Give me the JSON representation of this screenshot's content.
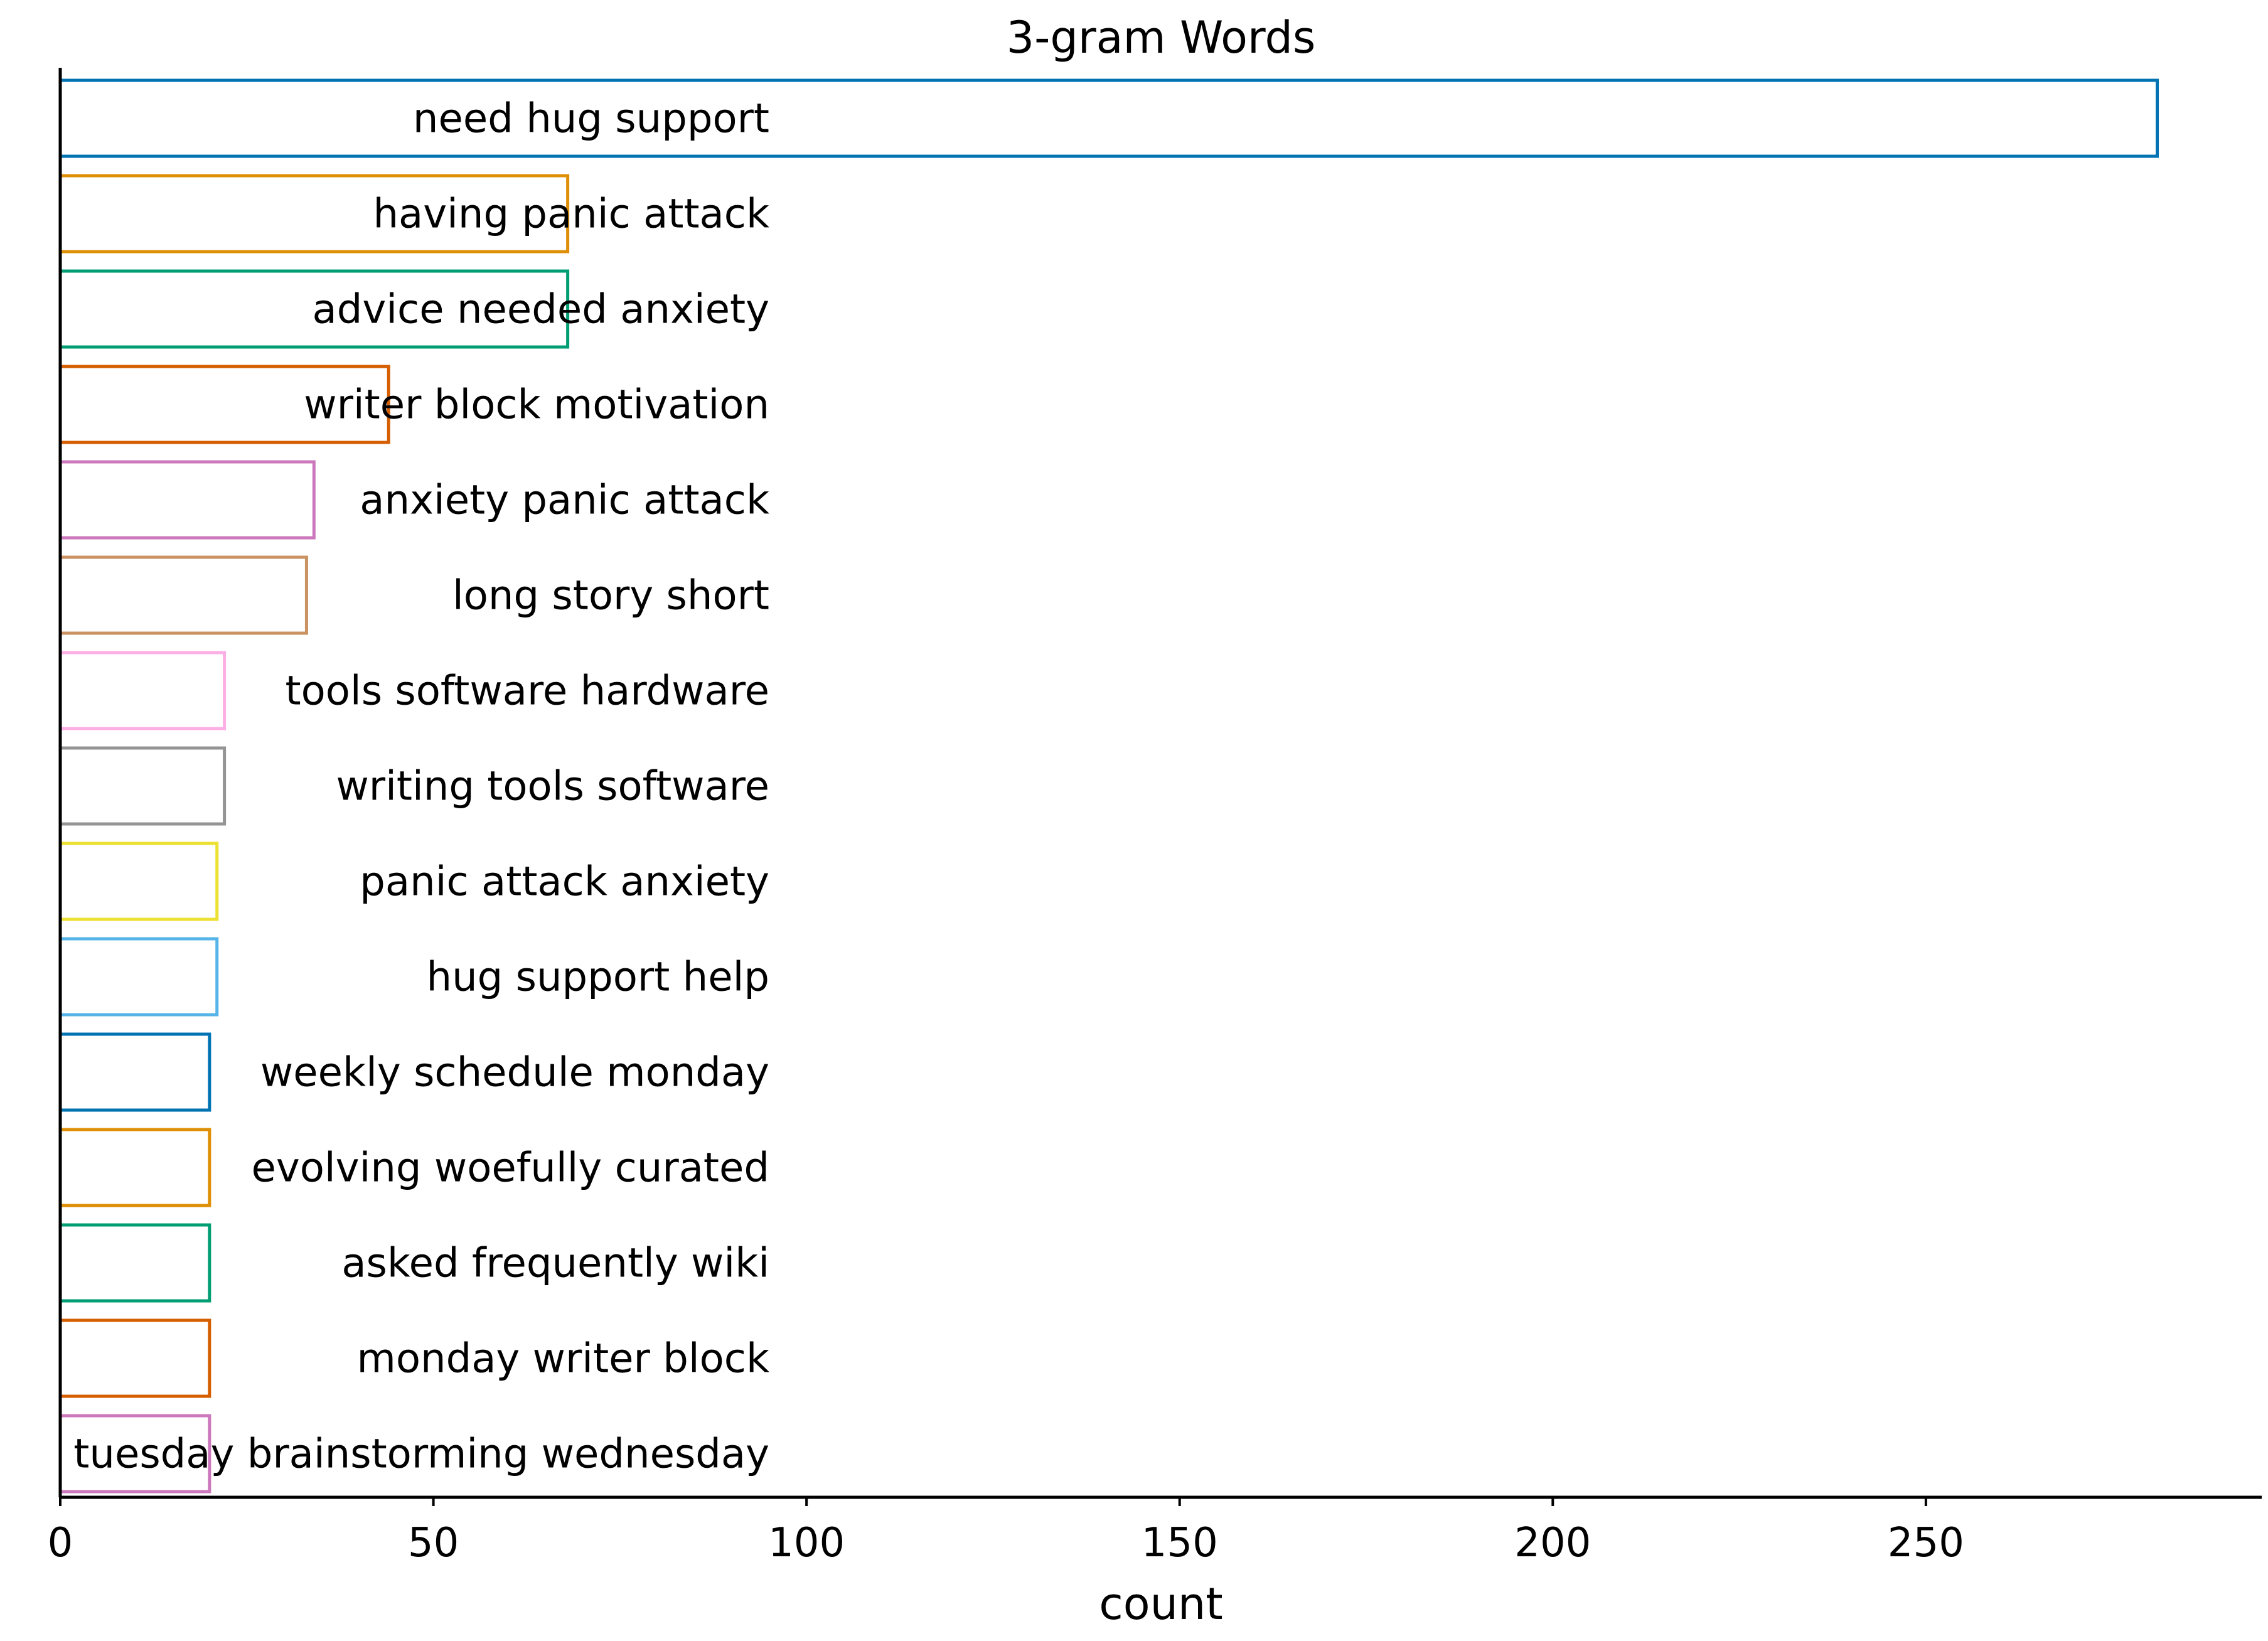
{
  "chart_data": {
    "type": "bar",
    "orientation": "horizontal",
    "title": "3-gram Words",
    "xlabel": "count",
    "ylabel": "",
    "xlim": [
      0,
      295
    ],
    "xticks": [
      0,
      50,
      100,
      150,
      200,
      250
    ],
    "xtick_labels": [
      "0",
      "50",
      "100",
      "150",
      "200",
      "250"
    ],
    "grid": false,
    "legend": false,
    "bar_style": "outline",
    "categories": [
      "need hug support",
      "having panic attack",
      "advice needed anxiety",
      "writer block motivation",
      "anxiety panic attack",
      "long story short",
      "tools software hardware",
      "writing tools software",
      "panic attack anxiety",
      "hug support help",
      "weekly schedule monday",
      "evolving woefully curated",
      "asked frequently wiki",
      "monday writer block",
      "tuesday brainstorming wednesday"
    ],
    "values": [
      281,
      68,
      68,
      44,
      34,
      33,
      22,
      22,
      21,
      21,
      20,
      20,
      20,
      20,
      20
    ],
    "colors": [
      "#0173b2",
      "#de8f05",
      "#029e73",
      "#d55e00",
      "#cc78bc",
      "#ca9161",
      "#fbafe4",
      "#949494",
      "#ece133",
      "#56b4e9",
      "#0173b2",
      "#de8f05",
      "#029e73",
      "#d55e00",
      "#cc78bc"
    ]
  }
}
